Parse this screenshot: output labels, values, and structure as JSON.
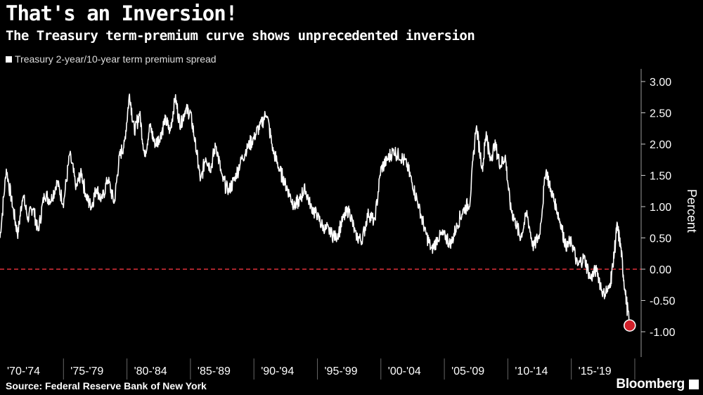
{
  "header": {
    "title": "That's an Inversion!",
    "subtitle": "The Treasury term-premium curve shows unprecedented inversion"
  },
  "footer": {
    "source": "Source: Federal Reserve Bank of New York",
    "brand": "Bloomberg"
  },
  "colors": {
    "background": "#000000",
    "line": "#ffffff",
    "zero_line": "#e0303a",
    "marker": "#d0202a",
    "separator": "#666666"
  },
  "chart_data": {
    "type": "line",
    "title": "That's an Inversion!",
    "subtitle": "The Treasury term-premium curve shows unprecedented inversion",
    "legend": [
      "Treasury 2-year/10-year term premium spread"
    ],
    "ylabel": "Percent",
    "xlabel": "",
    "ylim": [
      -1.1,
      3.2
    ],
    "xlim": [
      1970.0,
      2020.5
    ],
    "yticks": [
      3.0,
      2.5,
      2.0,
      1.5,
      1.0,
      0.5,
      0.0,
      -0.5,
      -1.0
    ],
    "ytick_labels": [
      "3.00",
      "2.50",
      "2.00",
      "1.50",
      "1.00",
      "0.50",
      "0.00",
      "-0.50",
      "-1.00"
    ],
    "xtick_labels": [
      "'70-'74",
      "'75-'79",
      "'80-'84",
      "'85-'89",
      "'90-'94",
      "'95-'99",
      "'00-'04",
      "'05-'09",
      "'10-'14",
      "'15-'19"
    ],
    "reference_line": {
      "y": 0.0,
      "style": "dashed"
    },
    "highlight_point": {
      "x": 2019.6,
      "y": -0.9
    },
    "series": [
      {
        "name": "Treasury 2-year/10-year term premium spread",
        "x": [
          1970.0,
          1970.5,
          1971.0,
          1971.4,
          1971.8,
          1972.2,
          1972.6,
          1973.0,
          1973.5,
          1974.0,
          1974.5,
          1975.0,
          1975.5,
          1976.0,
          1976.4,
          1976.8,
          1977.2,
          1977.6,
          1978.0,
          1978.5,
          1979.0,
          1979.4,
          1979.8,
          1980.2,
          1980.6,
          1981.0,
          1981.4,
          1981.8,
          1982.2,
          1982.6,
          1983.0,
          1983.4,
          1983.8,
          1984.2,
          1984.6,
          1985.0,
          1985.4,
          1985.8,
          1986.2,
          1986.6,
          1987.0,
          1987.5,
          1988.0,
          1988.5,
          1989.0,
          1989.5,
          1990.0,
          1990.5,
          1991.0,
          1991.5,
          1992.0,
          1992.4,
          1992.8,
          1993.2,
          1993.6,
          1994.0,
          1994.5,
          1995.0,
          1995.5,
          1996.0,
          1996.5,
          1997.0,
          1997.5,
          1998.0,
          1998.5,
          1999.0,
          1999.5,
          2000.0,
          2000.5,
          2001.0,
          2001.5,
          2002.0,
          2002.5,
          2003.0,
          2003.5,
          2004.0,
          2004.5,
          2005.0,
          2005.5,
          2006.0,
          2006.5,
          2007.0,
          2007.5,
          2008.0,
          2008.3,
          2008.6,
          2009.0,
          2009.4,
          2009.8,
          2010.2,
          2010.6,
          2011.0,
          2011.5,
          2012.0,
          2012.5,
          2013.0,
          2013.4,
          2013.8,
          2014.2,
          2014.6,
          2015.0,
          2015.5,
          2016.0,
          2016.5,
          2017.0,
          2017.5,
          2018.0,
          2018.3,
          2018.6,
          2018.9,
          2019.2,
          2019.6
        ],
        "values": [
          0.5,
          1.6,
          1.0,
          0.55,
          1.2,
          0.8,
          1.0,
          0.6,
          1.2,
          1.1,
          1.4,
          1.05,
          1.85,
          1.3,
          1.55,
          1.15,
          1.0,
          1.3,
          1.1,
          1.45,
          1.05,
          1.8,
          2.0,
          2.8,
          2.2,
          2.5,
          1.8,
          2.3,
          2.0,
          2.1,
          2.4,
          2.2,
          2.75,
          2.3,
          2.55,
          2.5,
          2.0,
          1.4,
          1.8,
          1.6,
          2.0,
          1.45,
          1.25,
          1.45,
          1.75,
          1.95,
          2.1,
          2.3,
          2.5,
          1.9,
          1.6,
          1.4,
          1.2,
          1.0,
          1.1,
          1.3,
          1.0,
          0.85,
          0.65,
          0.6,
          0.5,
          0.8,
          0.95,
          0.55,
          0.45,
          0.9,
          0.75,
          1.6,
          1.75,
          1.9,
          1.8,
          1.7,
          1.35,
          1.0,
          0.6,
          0.3,
          0.5,
          0.55,
          0.4,
          0.7,
          0.95,
          1.05,
          2.3,
          1.6,
          2.2,
          1.75,
          2.0,
          1.65,
          1.8,
          1.0,
          0.75,
          0.5,
          0.9,
          0.35,
          0.55,
          1.6,
          1.25,
          1.0,
          0.7,
          0.35,
          0.45,
          0.05,
          0.2,
          -0.15,
          0.0,
          -0.4,
          -0.3,
          0.1,
          0.7,
          0.35,
          -0.3,
          -0.9
        ]
      }
    ]
  }
}
